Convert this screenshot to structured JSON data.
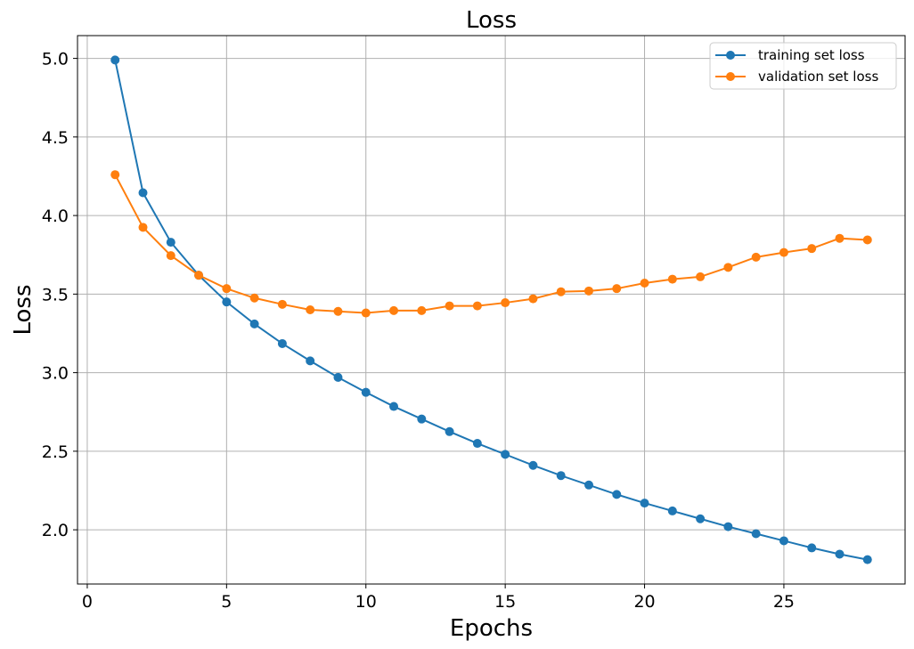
{
  "chart_data": {
    "type": "line",
    "title": "Loss",
    "xlabel": "Epochs",
    "ylabel": "Loss",
    "xlim": [
      -0.35,
      29.35
    ],
    "ylim": [
      1.655,
      5.145
    ],
    "xticks": [
      0,
      5,
      10,
      15,
      20,
      25
    ],
    "xtick_labels": [
      "0",
      "5",
      "10",
      "15",
      "20",
      "25"
    ],
    "yticks": [
      2.0,
      2.5,
      3.0,
      3.5,
      4.0,
      4.5,
      5.0
    ],
    "ytick_labels": [
      "2.0",
      "2.5",
      "3.0",
      "3.5",
      "4.0",
      "4.5",
      "5.0"
    ],
    "grid": true,
    "legend_position": "top-right",
    "markers": "circle",
    "x": [
      1,
      2,
      3,
      4,
      5,
      6,
      7,
      8,
      9,
      10,
      11,
      12,
      13,
      14,
      15,
      16,
      17,
      18,
      19,
      20,
      21,
      22,
      23,
      24,
      25,
      26,
      27,
      28
    ],
    "series": [
      {
        "name": "training set loss",
        "color": "#1f77b4",
        "values": [
          4.99,
          4.145,
          3.83,
          3.62,
          3.45,
          3.31,
          3.185,
          3.075,
          2.97,
          2.875,
          2.785,
          2.705,
          2.625,
          2.55,
          2.48,
          2.41,
          2.345,
          2.285,
          2.225,
          2.17,
          2.12,
          2.07,
          2.02,
          1.975,
          1.93,
          1.885,
          1.845,
          1.81
        ]
      },
      {
        "name": "validation set loss",
        "color": "#ff7f0e",
        "values": [
          4.26,
          3.925,
          3.745,
          3.62,
          3.535,
          3.475,
          3.435,
          3.4,
          3.39,
          3.38,
          3.395,
          3.395,
          3.425,
          3.425,
          3.445,
          3.47,
          3.515,
          3.52,
          3.535,
          3.57,
          3.595,
          3.61,
          3.67,
          3.735,
          3.765,
          3.79,
          3.855,
          3.845
        ]
      }
    ]
  }
}
